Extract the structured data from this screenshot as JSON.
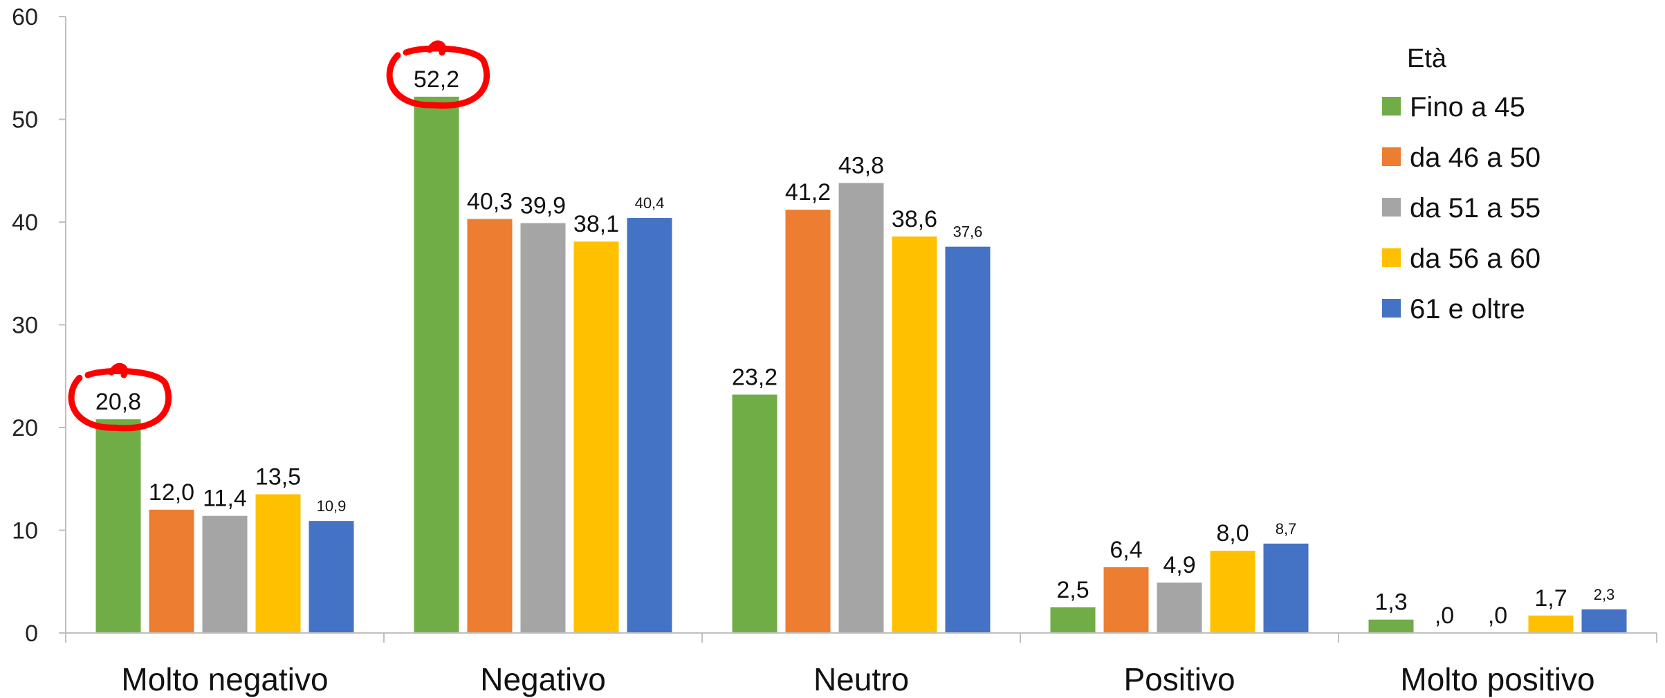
{
  "chart_data": {
    "type": "bar",
    "categories": [
      "Molto negativo",
      "Negativo",
      "Neutro",
      "Positivo",
      "Molto positivo"
    ],
    "ylim": [
      0,
      60
    ],
    "yticks": [
      0,
      10,
      20,
      30,
      40,
      50,
      60
    ],
    "grid": false,
    "legend": {
      "title": "Età",
      "position": "top-right"
    },
    "series": [
      {
        "name": "Fino a 45",
        "color": "#70AD47",
        "values": [
          20.8,
          52.2,
          23.2,
          2.5,
          1.3
        ],
        "labels": [
          "20,8",
          "52,2",
          "23,2",
          "2,5",
          "1,3"
        ]
      },
      {
        "name": "da 46 a 50",
        "color": "#ED7D31",
        "values": [
          12.0,
          40.3,
          41.2,
          6.4,
          0.0
        ],
        "labels": [
          "12,0",
          "40,3",
          "41,2",
          "6,4",
          ",0"
        ]
      },
      {
        "name": "da 51 a 55",
        "color": "#A5A5A5",
        "values": [
          11.4,
          39.9,
          43.8,
          4.9,
          0.0
        ],
        "labels": [
          "11,4",
          "39,9",
          "43,8",
          "4,9",
          ",0"
        ]
      },
      {
        "name": "da 56 a 60",
        "color": "#FFC000",
        "values": [
          13.5,
          38.1,
          38.6,
          8.0,
          1.7
        ],
        "labels": [
          "13,5",
          "38,1",
          "38,6",
          "8,0",
          "1,7"
        ]
      },
      {
        "name": "61 e oltre",
        "color": "#4472C4",
        "values": [
          10.9,
          40.4,
          37.6,
          8.7,
          2.3
        ],
        "labels": [
          "10,9",
          "40,4",
          "37,6",
          "8,7",
          "2,3"
        ]
      }
    ],
    "annotations": [
      {
        "type": "hand-drawn-circle",
        "color": "#FF0000",
        "series": "Fino a 45",
        "category": "Molto negativo"
      },
      {
        "type": "hand-drawn-circle",
        "color": "#FF0000",
        "series": "Fino a 45",
        "category": "Negativo"
      }
    ]
  }
}
